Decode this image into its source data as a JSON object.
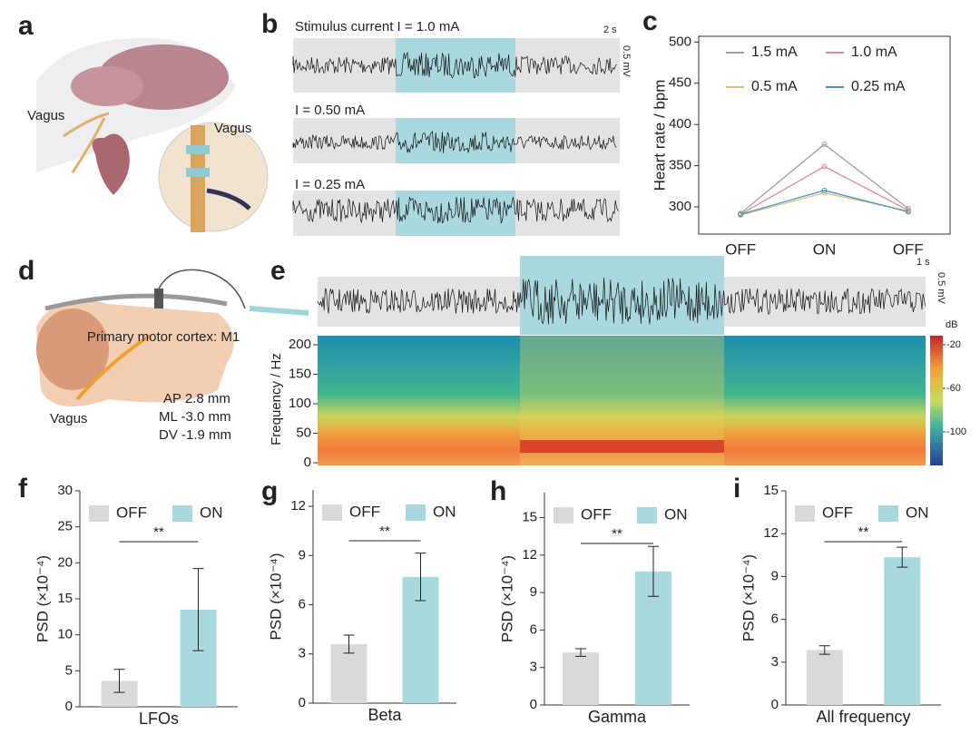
{
  "panels": {
    "letters": [
      "a",
      "b",
      "c",
      "d",
      "e",
      "f",
      "g",
      "h",
      "i"
    ],
    "a": {
      "labels": [
        "Vagus",
        "Vagus"
      ]
    },
    "b": {
      "traces": [
        "Stimulus current I = 1.0 mA",
        "I = 0.50 mA",
        "I = 0.25 mA"
      ],
      "time_scale": "2 s",
      "voltage_scale": "0.5 mV"
    },
    "d": {
      "region": "Primary motor cortex: M1",
      "coords": [
        "AP 2.8 mm",
        "ML -3.0 mm",
        "DV -1.9 mm"
      ],
      "nerve": "Vagus"
    },
    "e": {
      "time_scale": "1 s",
      "voltage_scale": "0.5 mV",
      "ylabel": "Frequency / Hz",
      "yticks": [
        0,
        50,
        100,
        150,
        200
      ],
      "colorbar_title": "dB",
      "colorbar_ticks": [
        -20,
        -60,
        -100
      ]
    }
  },
  "chart_data": [
    {
      "type": "line",
      "ylabel": "Heart rate / bpm",
      "categories": [
        "OFF",
        "ON",
        "OFF"
      ],
      "ylim": [
        267,
        507
      ],
      "yticks": [
        300,
        350,
        400,
        450,
        500
      ],
      "series": [
        {
          "name": "1.5 mA",
          "color": "#a0a0a0",
          "values": [
            292,
            376,
            298
          ]
        },
        {
          "name": "1.0 mA",
          "color": "#d98c97",
          "values": [
            291,
            349,
            296
          ]
        },
        {
          "name": "0.5 mA",
          "color": "#d8c27a",
          "values": [
            290,
            317,
            295
          ]
        },
        {
          "name": "0.25 mA",
          "color": "#4c93c0",
          "values": [
            291,
            320,
            294
          ]
        }
      ]
    },
    {
      "type": "bar",
      "xlabel": "LFOs",
      "ylabel": "PSD (×10⁻⁴)",
      "categories": [
        "OFF",
        "ON"
      ],
      "colors": [
        "#d9d9d9",
        "#a9d9df"
      ],
      "values": [
        3.6,
        13.5
      ],
      "errors": [
        1.6,
        5.7
      ],
      "ylim": [
        0,
        30
      ],
      "yticks": [
        0,
        5,
        10,
        15,
        20,
        25,
        30
      ],
      "annotation": "**"
    },
    {
      "type": "bar",
      "xlabel": "Beta",
      "ylabel": "PSD (×10⁻⁴)",
      "categories": [
        "OFF",
        "ON"
      ],
      "colors": [
        "#d9d9d9",
        "#a9d9df"
      ],
      "values": [
        3.6,
        7.7
      ],
      "errors": [
        0.55,
        1.45
      ],
      "ylim": [
        0,
        13
      ],
      "yticks": [
        0,
        3,
        6,
        9,
        12
      ],
      "annotation": "**"
    },
    {
      "type": "bar",
      "xlabel": "Gamma",
      "ylabel": "PSD (×10⁻⁴)",
      "categories": [
        "OFF",
        "ON"
      ],
      "colors": [
        "#d9d9d9",
        "#a9d9df"
      ],
      "values": [
        4.2,
        10.7
      ],
      "errors": [
        0.3,
        2.0
      ],
      "ylim": [
        0,
        17
      ],
      "yticks": [
        0,
        3,
        6,
        9,
        12,
        15
      ],
      "annotation": "**"
    },
    {
      "type": "bar",
      "xlabel": "All frequency",
      "ylabel": "PSD (×10⁻⁴)",
      "categories": [
        "OFF",
        "ON"
      ],
      "colors": [
        "#d9d9d9",
        "#a9d9df"
      ],
      "values": [
        3.85,
        10.35
      ],
      "errors": [
        0.3,
        0.7
      ],
      "ylim": [
        0,
        15
      ],
      "yticks": [
        0,
        3,
        6,
        9,
        12,
        15
      ],
      "annotation": "**"
    }
  ]
}
